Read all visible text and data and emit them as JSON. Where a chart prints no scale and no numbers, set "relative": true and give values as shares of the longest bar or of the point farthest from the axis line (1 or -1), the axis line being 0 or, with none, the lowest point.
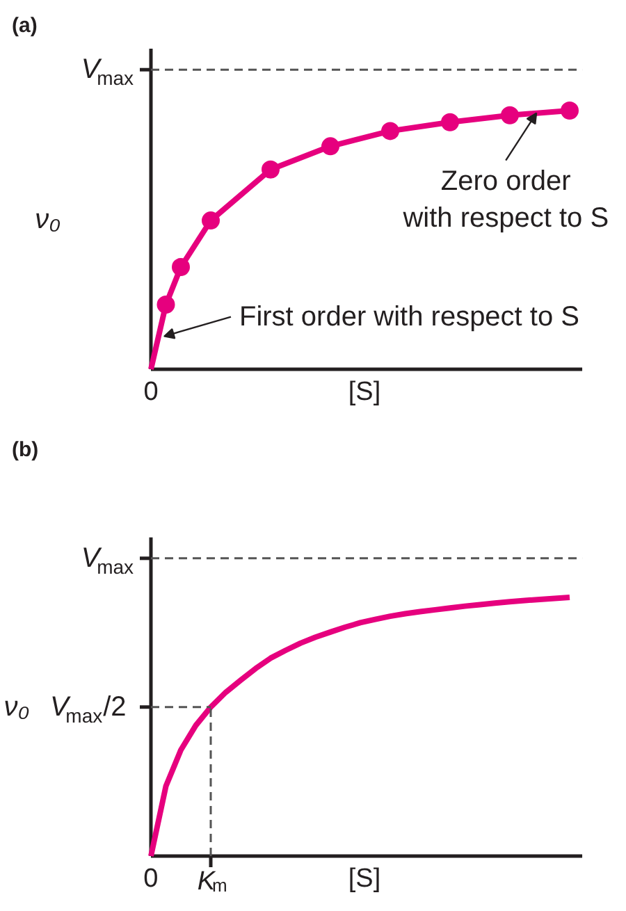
{
  "chart_data": [
    {
      "type": "line",
      "title": "(a)",
      "xlabel": "[S]",
      "ylabel": "ν₀",
      "relative": true,
      "categories": [
        null,
        null,
        null,
        null,
        null,
        null,
        null,
        null,
        null,
        null,
        null,
        null,
        null,
        null,
        null,
        null,
        null,
        null,
        null,
        null,
        null,
        null,
        null,
        null,
        null,
        null,
        null,
        null,
        null
      ],
      "ref_lines": [
        {
          "axis": "y",
          "value": 1.158,
          "label": "V$_{max}$",
          "line_style": "dashed"
        }
      ],
      "series": [
        {
          "type": "line",
          "marker": "circle",
          "color": "#e6007e",
          "values": [
            0,
            0.25,
            0.395,
            null,
            0.575,
            null,
            null,
            null,
            0.772,
            null,
            null,
            null,
            0.862,
            null,
            null,
            null,
            0.921,
            null,
            null,
            null,
            0.955,
            null,
            null,
            null,
            0.982,
            null,
            null,
            null,
            1
          ]
        }
      ],
      "annotations": [
        {
          "text": "0",
          "y": 0
        },
        "First order with respect to S",
        {
          "text": "Zero order\nwith respect to S",
          "y": 0.99
        }
      ]
    },
    {
      "type": "line",
      "title": "(b)",
      "xlabel": "[S]",
      "ylabel": "ν₀",
      "relative": true,
      "categories": [
        "0",
        null,
        null,
        null,
        "K$_{m}$",
        null,
        null,
        null,
        null,
        null,
        null,
        null,
        null,
        null,
        null,
        null,
        null,
        null,
        null,
        null,
        null,
        null,
        null,
        null,
        null,
        null,
        null,
        null,
        null
      ],
      "ref_lines": [
        {
          "axis": "y",
          "value": 1.151,
          "label": "V$_{max}$",
          "line_style": "dashed"
        },
        {
          "axis": "y",
          "value": 0.576,
          "label": "V$_{max}$/2",
          "line_style": "dashed"
        },
        {
          "axis": "x",
          "value": "K$_{m}$",
          "line_style": "dashed"
        }
      ],
      "series": [
        {
          "color": "#e6007e",
          "values": [
            0,
            0.27,
            0.41,
            0.505,
            0.576,
            0.633,
            0.68,
            0.725,
            0.765,
            0.795,
            0.823,
            0.846,
            0.866,
            0.885,
            0.902,
            0.915,
            0.927,
            0.937,
            0.945,
            0.952,
            0.959,
            0.966,
            0.972,
            0.978,
            0.983,
            0.988,
            0.992,
            0.996,
            1
          ]
        }
      ]
    }
  ]
}
